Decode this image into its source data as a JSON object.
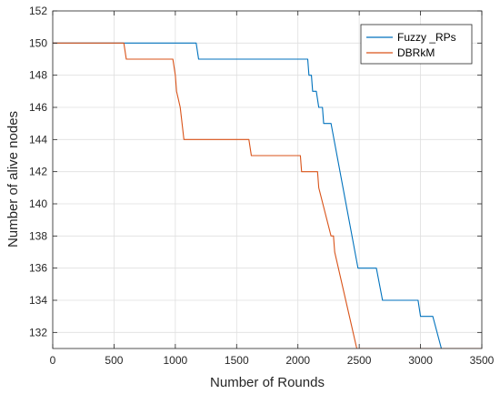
{
  "chart_data": {
    "type": "line",
    "title": "",
    "xlabel": "Number of Rounds",
    "ylabel": "Number of alive nodes",
    "xlim": [
      0,
      3500
    ],
    "ylim": [
      131,
      152
    ],
    "xticks": [
      0,
      500,
      1000,
      1500,
      2000,
      2500,
      3000,
      3500
    ],
    "yticks": [
      132,
      134,
      136,
      138,
      140,
      142,
      144,
      146,
      148,
      150,
      152
    ],
    "grid": true,
    "legend_position": "top-right",
    "series": [
      {
        "name": "Fuzzy _RPs",
        "color": "#0072BD",
        "x": [
          0,
          1170,
          1190,
          2080,
          2090,
          2110,
          2120,
          2140,
          2150,
          2170,
          2180,
          2200,
          2210,
          2230,
          2240,
          2260,
          2270,
          2490,
          2500,
          2640,
          2690,
          2980,
          3000,
          3100,
          3170
        ],
        "y": [
          150,
          150,
          149,
          149,
          148,
          148,
          147,
          147,
          147,
          146,
          146,
          146,
          145,
          145,
          145,
          145,
          145,
          136,
          136,
          136,
          134,
          134,
          133,
          133,
          131
        ]
      },
      {
        "name": "DBRkM",
        "color": "#D95319",
        "x": [
          0,
          580,
          600,
          980,
          1000,
          1010,
          1040,
          1070,
          1600,
          1620,
          2020,
          2030,
          2160,
          2170,
          2270,
          2290,
          2300,
          2480,
          3500
        ],
        "y": [
          150,
          150,
          149,
          149,
          148,
          147,
          146,
          144,
          144,
          143,
          143,
          142,
          142,
          141,
          138,
          138,
          137,
          131,
          131
        ]
      }
    ]
  }
}
